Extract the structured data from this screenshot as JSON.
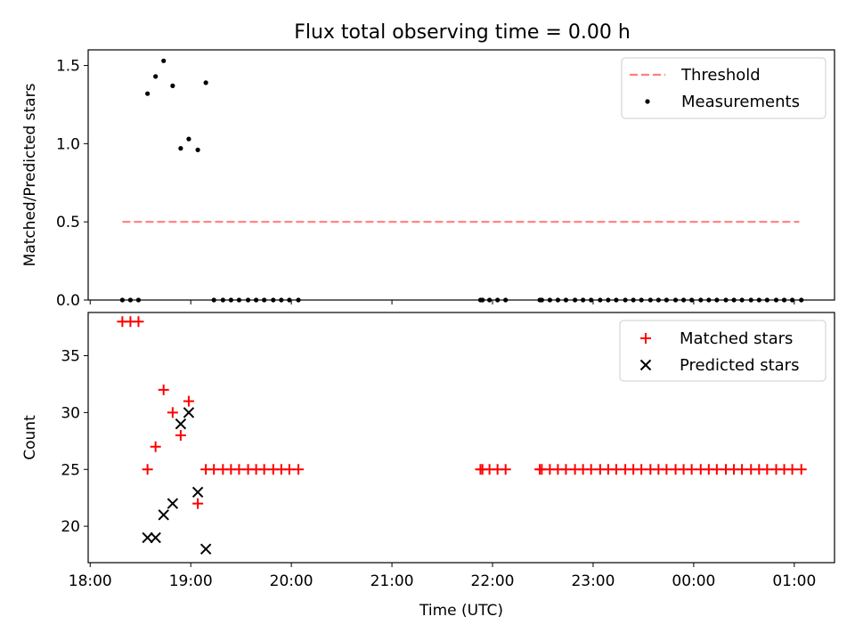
{
  "title": "Flux total observing time = 0.00 h",
  "colors": {
    "threshold": "#ff7f7f",
    "measure": "#000000",
    "matched": "#ff0000",
    "predicted": "#000000"
  },
  "chart_data": [
    {
      "type": "scatter",
      "ylabel": "Matched/Predicted stars",
      "ylim": [
        0,
        1.6
      ],
      "yticks": [
        0,
        0.5,
        1.0,
        1.5
      ],
      "ytick_labels": [
        "0.0",
        "0.5",
        "1.0",
        "1.5"
      ],
      "legend_position": "upper-right",
      "threshold": {
        "name": "Threshold",
        "value": 0.5,
        "x_start_h": 18.32,
        "x_end_h": 25.05
      },
      "measurements_name": "Measurements",
      "measurements": [
        {
          "x": 18.32,
          "y": 0
        },
        {
          "x": 18.4,
          "y": 0
        },
        {
          "x": 18.48,
          "y": 0
        },
        {
          "x": 18.57,
          "y": 1.32
        },
        {
          "x": 18.65,
          "y": 1.43
        },
        {
          "x": 18.73,
          "y": 1.53
        },
        {
          "x": 18.82,
          "y": 1.37
        },
        {
          "x": 18.9,
          "y": 0.97
        },
        {
          "x": 18.98,
          "y": 1.03
        },
        {
          "x": 19.07,
          "y": 0.96
        },
        {
          "x": 19.15,
          "y": 1.39
        },
        {
          "x": 19.23,
          "y": 0
        },
        {
          "x": 19.32,
          "y": 0
        },
        {
          "x": 19.4,
          "y": 0
        },
        {
          "x": 19.48,
          "y": 0
        },
        {
          "x": 19.57,
          "y": 0
        },
        {
          "x": 19.65,
          "y": 0
        },
        {
          "x": 19.73,
          "y": 0
        },
        {
          "x": 19.82,
          "y": 0
        },
        {
          "x": 19.9,
          "y": 0
        },
        {
          "x": 19.98,
          "y": 0
        },
        {
          "x": 20.07,
          "y": 0
        },
        {
          "x": 21.88,
          "y": 0
        },
        {
          "x": 21.9,
          "y": 0
        },
        {
          "x": 21.97,
          "y": 0
        },
        {
          "x": 22.05,
          "y": 0
        },
        {
          "x": 22.13,
          "y": 0
        },
        {
          "x": 22.47,
          "y": 0
        },
        {
          "x": 22.49,
          "y": 0
        },
        {
          "x": 22.57,
          "y": 0
        },
        {
          "x": 22.65,
          "y": 0
        },
        {
          "x": 22.73,
          "y": 0
        },
        {
          "x": 22.82,
          "y": 0
        },
        {
          "x": 22.9,
          "y": 0
        },
        {
          "x": 22.98,
          "y": 0
        },
        {
          "x": 23.07,
          "y": 0
        },
        {
          "x": 23.15,
          "y": 0
        },
        {
          "x": 23.23,
          "y": 0
        },
        {
          "x": 23.32,
          "y": 0
        },
        {
          "x": 23.4,
          "y": 0
        },
        {
          "x": 23.48,
          "y": 0
        },
        {
          "x": 23.57,
          "y": 0
        },
        {
          "x": 23.65,
          "y": 0
        },
        {
          "x": 23.73,
          "y": 0
        },
        {
          "x": 23.82,
          "y": 0
        },
        {
          "x": 23.9,
          "y": 0
        },
        {
          "x": 23.98,
          "y": 0
        },
        {
          "x": 24.07,
          "y": 0
        },
        {
          "x": 24.15,
          "y": 0
        },
        {
          "x": 24.23,
          "y": 0
        },
        {
          "x": 24.32,
          "y": 0
        },
        {
          "x": 24.4,
          "y": 0
        },
        {
          "x": 24.48,
          "y": 0
        },
        {
          "x": 24.57,
          "y": 0
        },
        {
          "x": 24.65,
          "y": 0
        },
        {
          "x": 24.73,
          "y": 0
        },
        {
          "x": 24.82,
          "y": 0
        },
        {
          "x": 24.9,
          "y": 0
        },
        {
          "x": 24.98,
          "y": 0
        },
        {
          "x": 25.07,
          "y": 0
        }
      ]
    },
    {
      "type": "scatter",
      "xlabel": "Time (UTC)",
      "ylabel": "Count",
      "ylim": [
        16.8,
        38.8
      ],
      "yticks": [
        20,
        25,
        30,
        35
      ],
      "ytick_labels": [
        "20",
        "25",
        "30",
        "35"
      ],
      "xlim_h": [
        17.98,
        25.4
      ],
      "xticks_h": [
        18,
        19,
        20,
        21,
        22,
        23,
        24,
        25
      ],
      "xtick_labels": [
        "18:00",
        "19:00",
        "20:00",
        "21:00",
        "22:00",
        "23:00",
        "00:00",
        "01:00"
      ],
      "legend_position": "upper-right",
      "matched_name": "Matched stars",
      "predicted_name": "Predicted stars",
      "matched": [
        {
          "x": 18.32,
          "y": 38
        },
        {
          "x": 18.4,
          "y": 38
        },
        {
          "x": 18.48,
          "y": 38
        },
        {
          "x": 18.57,
          "y": 25
        },
        {
          "x": 18.65,
          "y": 27
        },
        {
          "x": 18.73,
          "y": 32
        },
        {
          "x": 18.82,
          "y": 30
        },
        {
          "x": 18.9,
          "y": 28
        },
        {
          "x": 18.98,
          "y": 31
        },
        {
          "x": 19.07,
          "y": 22
        },
        {
          "x": 19.15,
          "y": 25
        },
        {
          "x": 19.23,
          "y": 25
        },
        {
          "x": 19.32,
          "y": 25
        },
        {
          "x": 19.4,
          "y": 25
        },
        {
          "x": 19.48,
          "y": 25
        },
        {
          "x": 19.57,
          "y": 25
        },
        {
          "x": 19.65,
          "y": 25
        },
        {
          "x": 19.73,
          "y": 25
        },
        {
          "x": 19.82,
          "y": 25
        },
        {
          "x": 19.9,
          "y": 25
        },
        {
          "x": 19.98,
          "y": 25
        },
        {
          "x": 20.07,
          "y": 25
        },
        {
          "x": 21.88,
          "y": 25
        },
        {
          "x": 21.9,
          "y": 25
        },
        {
          "x": 21.97,
          "y": 25
        },
        {
          "x": 22.05,
          "y": 25
        },
        {
          "x": 22.13,
          "y": 25
        },
        {
          "x": 22.47,
          "y": 25
        },
        {
          "x": 22.49,
          "y": 25
        },
        {
          "x": 22.57,
          "y": 25
        },
        {
          "x": 22.65,
          "y": 25
        },
        {
          "x": 22.73,
          "y": 25
        },
        {
          "x": 22.82,
          "y": 25
        },
        {
          "x": 22.9,
          "y": 25
        },
        {
          "x": 22.98,
          "y": 25
        },
        {
          "x": 23.07,
          "y": 25
        },
        {
          "x": 23.15,
          "y": 25
        },
        {
          "x": 23.23,
          "y": 25
        },
        {
          "x": 23.32,
          "y": 25
        },
        {
          "x": 23.4,
          "y": 25
        },
        {
          "x": 23.48,
          "y": 25
        },
        {
          "x": 23.57,
          "y": 25
        },
        {
          "x": 23.65,
          "y": 25
        },
        {
          "x": 23.73,
          "y": 25
        },
        {
          "x": 23.82,
          "y": 25
        },
        {
          "x": 23.9,
          "y": 25
        },
        {
          "x": 23.98,
          "y": 25
        },
        {
          "x": 24.07,
          "y": 25
        },
        {
          "x": 24.15,
          "y": 25
        },
        {
          "x": 24.23,
          "y": 25
        },
        {
          "x": 24.32,
          "y": 25
        },
        {
          "x": 24.4,
          "y": 25
        },
        {
          "x": 24.48,
          "y": 25
        },
        {
          "x": 24.57,
          "y": 25
        },
        {
          "x": 24.65,
          "y": 25
        },
        {
          "x": 24.73,
          "y": 25
        },
        {
          "x": 24.82,
          "y": 25
        },
        {
          "x": 24.9,
          "y": 25
        },
        {
          "x": 24.98,
          "y": 25
        },
        {
          "x": 25.07,
          "y": 25
        }
      ],
      "predicted": [
        {
          "x": 18.57,
          "y": 19
        },
        {
          "x": 18.65,
          "y": 19
        },
        {
          "x": 18.73,
          "y": 21
        },
        {
          "x": 18.82,
          "y": 22
        },
        {
          "x": 18.9,
          "y": 29
        },
        {
          "x": 18.98,
          "y": 30
        },
        {
          "x": 19.07,
          "y": 23
        },
        {
          "x": 19.15,
          "y": 18
        }
      ]
    }
  ]
}
